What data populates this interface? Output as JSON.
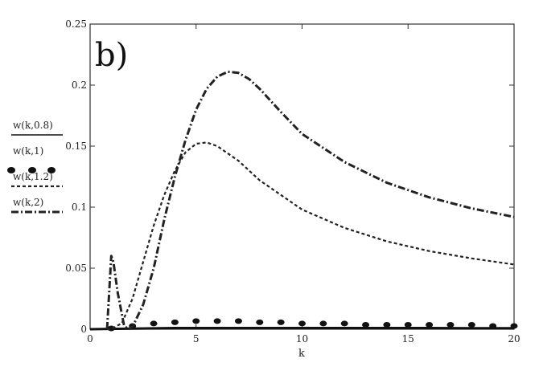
{
  "chart_data": {
    "type": "line",
    "title": "",
    "panel_label": "b)",
    "xlabel": "k",
    "ylabel": "",
    "xlim": [
      0,
      20
    ],
    "ylim": [
      0,
      0.25
    ],
    "xticks": [
      0,
      5,
      10,
      15,
      20
    ],
    "yticks": [
      0,
      0.05,
      0.1,
      0.15,
      0.2,
      0.25
    ],
    "ytick_labels": [
      "0",
      "0.05",
      "0.1",
      "0.15",
      "0.2",
      "0.25"
    ],
    "xtick_labels": [
      "0",
      "5",
      "10",
      "15",
      "20"
    ],
    "grid": false,
    "legend_position": "left",
    "series": [
      {
        "name": "w(k,0.8)",
        "style": "solid",
        "x": [
          0,
          2,
          4,
          6,
          8,
          10,
          12,
          14,
          16,
          18,
          20
        ],
        "y": [
          0.0,
          0.0005,
          0.001,
          0.001,
          0.001,
          0.001,
          0.001,
          0.001,
          0.001,
          0.0008,
          0.0008
        ]
      },
      {
        "name": "w(k,1)",
        "style": "dots",
        "x": [
          1,
          2,
          3,
          4,
          5,
          6,
          7,
          8,
          9,
          10,
          11,
          12,
          13,
          14,
          15,
          16,
          17,
          18,
          19,
          20
        ],
        "y": [
          0.0,
          0.002,
          0.004,
          0.005,
          0.006,
          0.006,
          0.006,
          0.005,
          0.005,
          0.004,
          0.004,
          0.004,
          0.003,
          0.003,
          0.003,
          0.003,
          0.003,
          0.003,
          0.002,
          0.002
        ]
      },
      {
        "name": "w(k,1.2)",
        "style": "dashed",
        "x": [
          0.8,
          1.0,
          1.5,
          2.0,
          2.5,
          3.0,
          3.5,
          4.0,
          4.5,
          5.0,
          5.5,
          6.0,
          7.0,
          8.0,
          10.0,
          12.0,
          14.0,
          16.0,
          18.0,
          20.0
        ],
        "y": [
          0.0,
          0.0,
          0.005,
          0.025,
          0.055,
          0.085,
          0.11,
          0.13,
          0.145,
          0.152,
          0.153,
          0.15,
          0.138,
          0.122,
          0.098,
          0.083,
          0.072,
          0.064,
          0.058,
          0.053
        ]
      },
      {
        "name": "w(k,2)",
        "style": "dashdot",
        "x": [
          0.8,
          0.9,
          1.0,
          1.1,
          1.3,
          1.6,
          1.8,
          2.0,
          2.5,
          3.0,
          3.5,
          4.0,
          4.5,
          5.0,
          5.5,
          6.0,
          6.5,
          7.0,
          7.5,
          8.0,
          9.0,
          10.0,
          12.0,
          14.0,
          16.0,
          18.0,
          20.0
        ],
        "y": [
          0.0,
          0.03,
          0.06,
          0.055,
          0.03,
          0.003,
          0.0,
          0.002,
          0.02,
          0.05,
          0.09,
          0.125,
          0.155,
          0.18,
          0.197,
          0.207,
          0.211,
          0.21,
          0.205,
          0.197,
          0.178,
          0.16,
          0.137,
          0.12,
          0.108,
          0.099,
          0.092
        ]
      }
    ]
  }
}
